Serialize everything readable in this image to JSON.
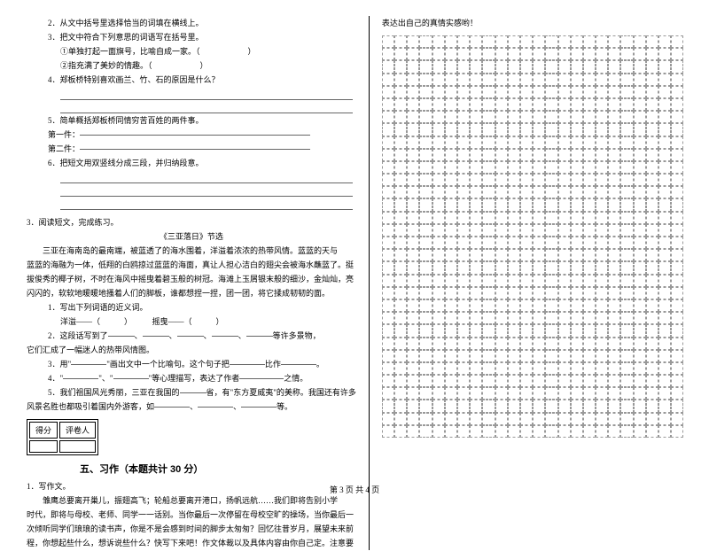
{
  "left": {
    "q2": "2．从文中括号里选择恰当的词填在横线上。",
    "q3": "3．把文中符合下列意思的词语写在括号里。",
    "q3a": "①单独打起一面旗号，比喻自成一家。（　　　　　　）",
    "q3b": "②指充满了美妙的情趣。（　　　　　　）",
    "q4": "4．郑板桥特别喜欢画兰、竹、石的原因是什么？",
    "q5": "5．简单概括郑板桥同情穷苦百姓的两件事。",
    "q5a": "第一件：",
    "q5b": "第二件：",
    "q6": "6．把短文用双竖线分成三段，并归纳段意。",
    "p3": "3．阅读短文，完成练习。",
    "articleTitle": "《三亚落日》节选",
    "para1": "　　三亚在海南岛的最南端，被蓝透了的海水围着，洋溢着浓浓的热带风情。蓝蓝的天与",
    "para2": "蓝蓝的海融为一体，低翔的白鸥掠过蓝蓝的海面，真让人担心洁白的翅尖会被海水蘸蓝了。挺",
    "para3": "拔俊秀的椰子树，不时在海风中摇曳着碧玉般的树冠。海滩上玉屑银末般的细沙，金灿灿，亮",
    "para4": "闪闪的，软软地暖暖地搔着人们的脚板，谁都想捏一捏，团一团，将它揉成韧韧的面。",
    "sq1": "1．写出下列词语的近义词。",
    "sq1a": "洋溢——（　　　）　　　摇曳——（　　　）",
    "sq2": "2．这段话写到了",
    "sq2b": "等许多景物，",
    "sq2c": "它们汇成了一幅迷人的热带风情图。",
    "sq3a": "3．用\"",
    "sq3b": "\"画出文中一个比喻句。这个句子把",
    "sq3c": "比作",
    "sq4a": "4．\"",
    "sq4b": "\"、\"",
    "sq4c": "\"等心理描写，表达了作者",
    "sq4d": "之情。",
    "sq5a": "5．我们祖国风光秀丽，三亚在我国的",
    "sq5b": "省，有\"东方夏威夷\"的美称。我国还有许多",
    "sq5c": "风景名胜也都吸引着国内外游客，如",
    "sq5d": "等。",
    "scoreL": "得分",
    "scoreR": "评卷人",
    "section5": "五、习作（本题共计 30 分）",
    "w1": "1．写作文。",
    "wp1": "　　雏鹰总要离开巢儿，振翅高飞；轮船总要离开港口，扬帆远航……我们即将告别小学",
    "wp2": "时代，即将与母校、老师、同学一一话别。当你最后一次停留在母校空旷的操场，当你最后一",
    "wp3": "次倾听同学们琅琅的读书声，你是不是会感到时间的脚步太匆匆？回忆往昔岁月，展望未来前",
    "wp4": "程，你想起些什么，想诉说些什么？快写下来吧！作文体裁以及具体内容由你自己定。注意要"
  },
  "right": {
    "top": "表达出自己的真情实感哟！"
  },
  "footer": "第 3 页  共 4 页",
  "grid": {
    "rows": 32,
    "cols": 24
  }
}
